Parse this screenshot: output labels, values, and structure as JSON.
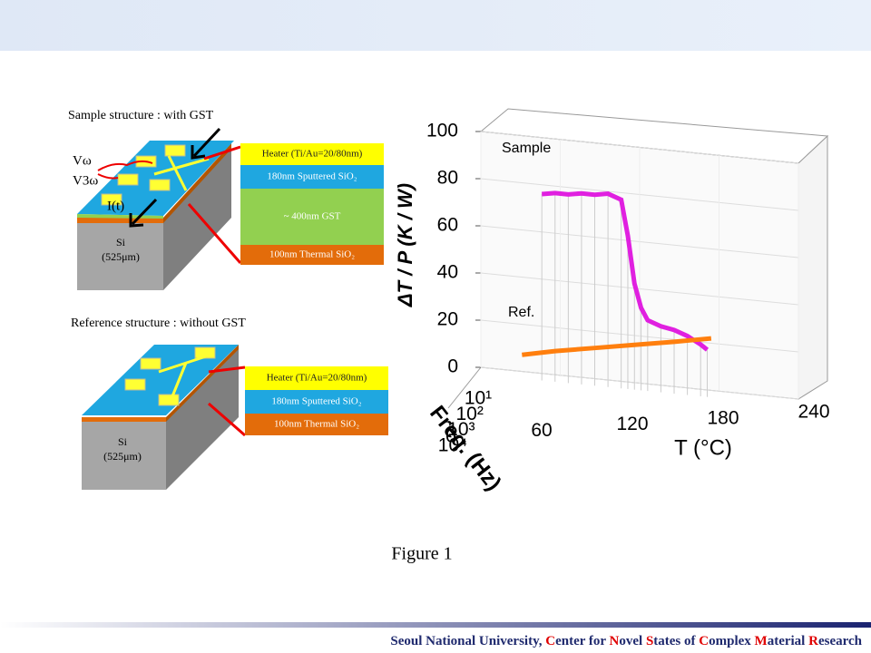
{
  "sample_structure": {
    "title": "Sample structure : with GST",
    "v_omega": "Vω",
    "v_3omega": "V3ω",
    "current": "I(t)",
    "substrate": [
      "Si",
      "(525μm)"
    ],
    "layers": [
      "Heater (Ti/Au=20/80nm)",
      "180nm Sputtered SiO₂",
      "~ 400nm GST",
      "100nm Thermal SiO₂"
    ]
  },
  "reference_structure": {
    "title": "Reference structure : without GST",
    "substrate": [
      "Si",
      "(525μm)"
    ],
    "layers": [
      "Heater (Ti/Au=20/80nm)",
      "180nm Sputtered SiO₂",
      "100nm Thermal SiO₂"
    ]
  },
  "chart_data": {
    "type": "line3d",
    "zlabel": "ΔT / P (K / W)",
    "xlabel": "T (°C)",
    "ylabel": "Freq. (Hz)",
    "xlim": [
      0,
      240
    ],
    "xticks": [
      0,
      60,
      120,
      180,
      240
    ],
    "ylim": [
      10,
      10000
    ],
    "yscale": "log",
    "yticks": [
      {
        "value": 10,
        "label": "10¹"
      },
      {
        "value": 100,
        "label": "10²"
      },
      {
        "value": 1000,
        "label": "10³"
      },
      {
        "value": 10000,
        "label": "10⁴"
      }
    ],
    "zlim": [
      0,
      100
    ],
    "zticks": [
      0,
      20,
      40,
      60,
      80,
      100
    ],
    "annotations": [
      "Sample",
      "Ref."
    ],
    "series": [
      {
        "name": "Sample",
        "color": "#e020e0",
        "freq": 30,
        "x": [
          50,
          60,
          70,
          80,
          90,
          100,
          110,
          115,
          120,
          125,
          130,
          140,
          150,
          160,
          170,
          175
        ],
        "values": [
          79,
          80,
          80,
          81,
          81,
          82,
          80,
          65,
          45,
          35,
          30,
          28,
          27,
          25,
          22,
          20
        ]
      },
      {
        "name": "Ref.",
        "color": "#ff7f0e",
        "freq": 30,
        "x": [
          35,
          60,
          90,
          120,
          150,
          178
        ],
        "values": [
          10,
          13,
          16,
          19,
          22,
          25
        ]
      }
    ]
  },
  "caption": "Figure 1",
  "footer": [
    "Seoul National University, ",
    "C",
    "enter for ",
    "N",
    "ovel ",
    "S",
    "tates of ",
    "C",
    "omplex ",
    "M",
    "aterial ",
    "R",
    "esearch"
  ]
}
